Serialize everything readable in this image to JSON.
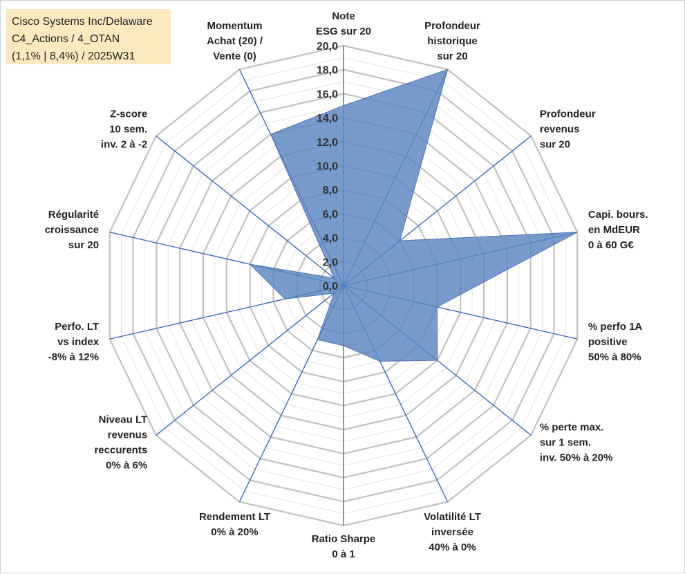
{
  "info_box": {
    "line1": "Cisco Systems Inc/Delaware",
    "line2": "C4_Actions / 4_OTAN",
    "line3": "(1,1% | 8,4%) / 2025W31"
  },
  "chart_data": {
    "type": "radar",
    "title": "",
    "rmin": 0,
    "rmax": 20,
    "tick_step": 2,
    "tick_labels": [
      "0,0",
      "2,0",
      "4,0",
      "6,0",
      "8,0",
      "10,0",
      "12,0",
      "14,0",
      "16,0",
      "18,0",
      "20,0"
    ],
    "grid": true,
    "colors": {
      "fill": "#5b85c0",
      "stroke": "#4a72ad",
      "spoke": "#2f5fb0",
      "grid": "#c0c0c0"
    },
    "axes": [
      {
        "lines": [
          "Note",
          "ESG sur 20"
        ]
      },
      {
        "lines": [
          "Profondeur",
          "historique",
          "sur 20"
        ]
      },
      {
        "lines": [
          "Profondeur",
          "revenus",
          "sur 20"
        ]
      },
      {
        "lines": [
          "Capi. bours.",
          "en MdEUR",
          "0 à 60 G€"
        ]
      },
      {
        "lines": [
          "% perfo 1A",
          "positive",
          "50% à 80%"
        ]
      },
      {
        "lines": [
          "% perte max.",
          "sur 1 sem.",
          "inv. 50% à 20%"
        ]
      },
      {
        "lines": [
          "Volatilité LT",
          "inversée",
          "40% à 0%"
        ]
      },
      {
        "lines": [
          "Ratio Sharpe",
          "0 à 1"
        ]
      },
      {
        "lines": [
          "Rendement LT",
          "0% à 20%"
        ]
      },
      {
        "lines": [
          "Niveau LT",
          "revenus",
          "reccurents",
          "0% à 6%"
        ]
      },
      {
        "lines": [
          "Perfo. LT",
          "vs index",
          "-8% à 12%"
        ]
      },
      {
        "lines": [
          "Régularité",
          "croissance",
          "sur 20"
        ]
      },
      {
        "lines": [
          "Z-score",
          "10 sem.",
          "inv. 2 à -2"
        ]
      },
      {
        "lines": [
          "Momentum",
          "Achat (20) /",
          "Vente (0)"
        ]
      }
    ],
    "series": [
      {
        "values": [
          15,
          20,
          6,
          20,
          8,
          10,
          7,
          5,
          5,
          1,
          5,
          8,
          1,
          14
        ]
      }
    ]
  }
}
